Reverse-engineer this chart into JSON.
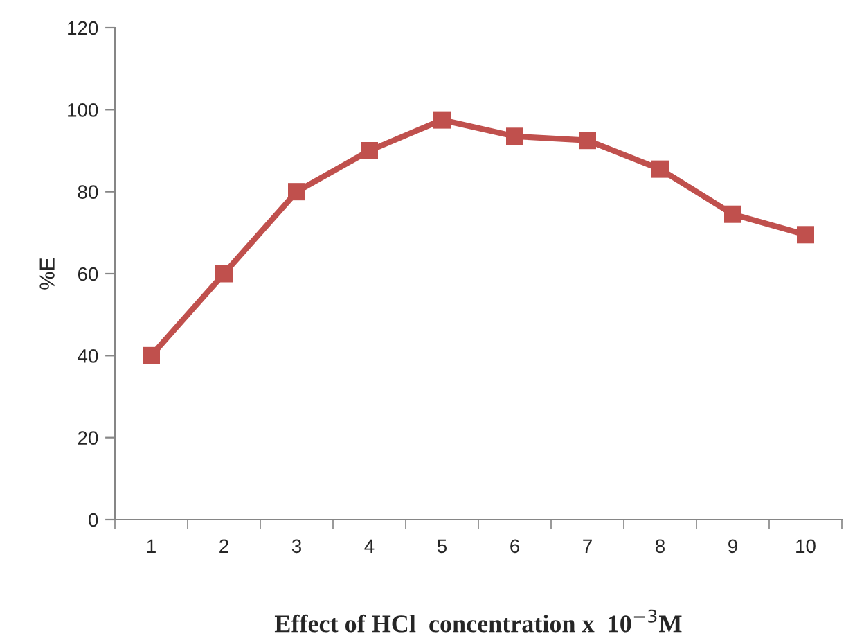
{
  "chart_data": {
    "type": "line",
    "xlabel": "Effect of HCl  concentration x  10$^{−3}$M",
    "ylabel": "%E",
    "categories": [
      "1",
      "2",
      "3",
      "4",
      "5",
      "6",
      "7",
      "8",
      "9",
      "10"
    ],
    "series": [
      {
        "color": "#c0504d",
        "values": [
          40,
          60,
          80,
          90,
          97.5,
          93.5,
          92.5,
          85.5,
          74.5,
          69.5
        ]
      }
    ],
    "ylim": [
      0,
      120
    ],
    "yticks": [
      0,
      20,
      40,
      60,
      80,
      100,
      120
    ],
    "grid": false,
    "legend": false,
    "marker": "square",
    "line_style": "solid"
  }
}
